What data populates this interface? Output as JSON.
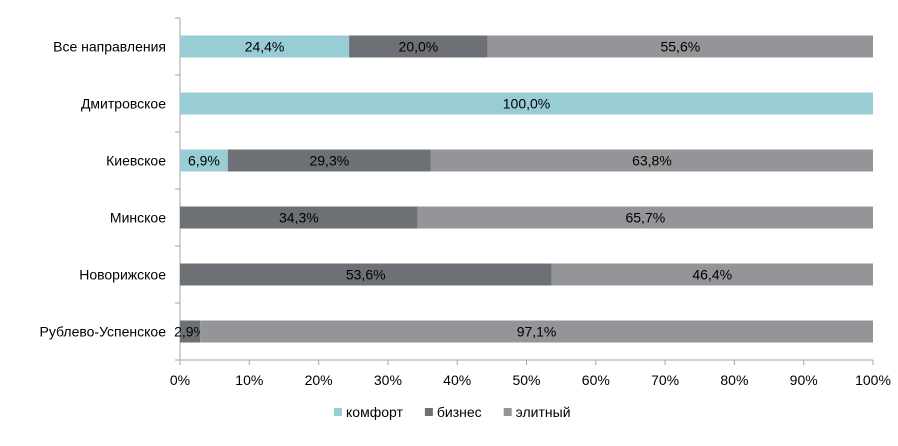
{
  "chart_data": {
    "type": "bar",
    "orientation": "horizontal",
    "stacked": true,
    "categories": [
      "Все направления",
      "Дмитровское",
      "Киевское",
      "Минское",
      "Новорижское",
      "Рублево-Успенское"
    ],
    "series": [
      {
        "name": "комфорт",
        "color": "#99cdd6",
        "values": [
          24.4,
          100.0,
          6.9,
          0,
          0,
          0
        ],
        "labels": [
          "24,4%",
          "100,0%",
          "6,9%",
          "",
          "",
          ""
        ]
      },
      {
        "name": "бизнес",
        "color": "#6d7175",
        "values": [
          20.0,
          0,
          29.3,
          34.3,
          53.6,
          2.9
        ],
        "labels": [
          "20,0%",
          "",
          "29,3%",
          "34,3%",
          "53,6%",
          "2,9%"
        ]
      },
      {
        "name": "элитный",
        "color": "#939598",
        "values": [
          55.6,
          0,
          63.8,
          65.7,
          46.4,
          97.1
        ],
        "labels": [
          "55,6%",
          "",
          "63,8%",
          "65,7%",
          "46,4%",
          "97,1%"
        ]
      }
    ],
    "xlim": [
      0,
      100
    ],
    "xticks": [
      "0%",
      "10%",
      "20%",
      "30%",
      "40%",
      "50%",
      "60%",
      "70%",
      "80%",
      "90%",
      "100%"
    ],
    "grid": false,
    "legend_position": "bottom"
  }
}
